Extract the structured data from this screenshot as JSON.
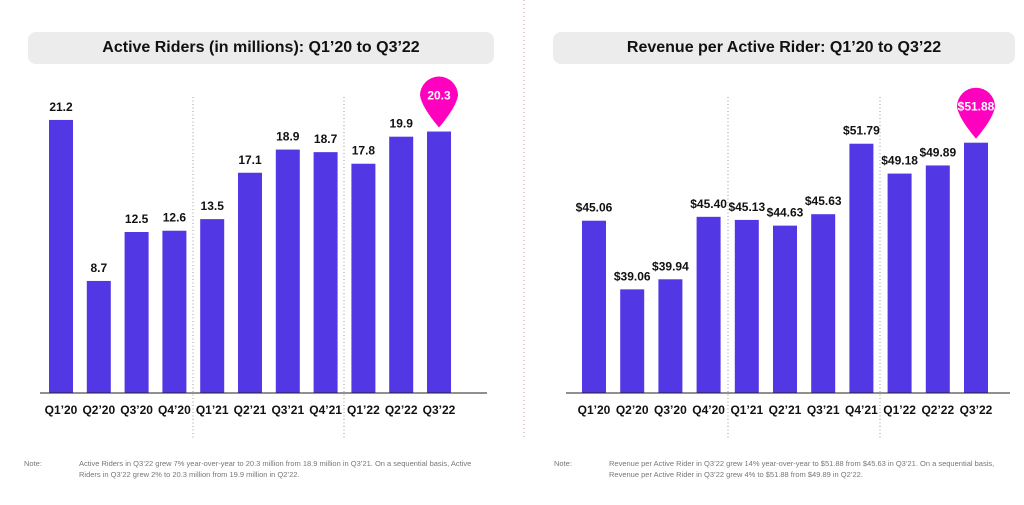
{
  "colors": {
    "bar": "#5237e5",
    "highlight": "#ff00bf",
    "divider": "#999999"
  },
  "chart_data": [
    {
      "type": "bar",
      "title": "Active Riders (in millions): Q1’20 to Q3’22",
      "categories": [
        "Q1’20",
        "Q2’20",
        "Q3’20",
        "Q4’20",
        "Q1’21",
        "Q2’21",
        "Q3’21",
        "Q4’21",
        "Q1’22",
        "Q2’22",
        "Q3’22"
      ],
      "values": [
        21.2,
        8.7,
        12.5,
        12.6,
        13.5,
        17.1,
        18.9,
        18.7,
        17.8,
        19.9,
        20.3
      ],
      "labels": [
        "21.2",
        "8.7",
        "12.5",
        "12.6",
        "13.5",
        "17.1",
        "18.9",
        "18.7",
        "17.8",
        "19.9",
        "20.3"
      ],
      "highlight_index": 10,
      "ylim": [
        0,
        23
      ],
      "grid": false
    },
    {
      "type": "bar",
      "title": "Revenue per Active Rider: Q1’20 to Q3’22",
      "categories": [
        "Q1’20",
        "Q2’20",
        "Q3’20",
        "Q4’20",
        "Q1’21",
        "Q2’21",
        "Q3’21",
        "Q4’21",
        "Q1’22",
        "Q2’22",
        "Q3’22"
      ],
      "values": [
        45.06,
        39.06,
        39.94,
        45.4,
        45.13,
        44.63,
        45.63,
        51.79,
        49.18,
        49.89,
        51.88
      ],
      "labels": [
        "$45.06",
        "$39.06",
        "$39.94",
        "$45.40",
        "$45.13",
        "$44.63",
        "$45.63",
        "$51.79",
        "$49.18",
        "$49.89",
        "$51.88"
      ],
      "highlight_index": 10,
      "ylim": [
        30,
        55
      ],
      "grid": false
    }
  ],
  "notes": [
    {
      "label": "Note:",
      "text": "Active Riders in Q3’22 grew 7% year-over-year to 20.3 million from 18.9 million in Q3’21. On a sequential basis, Active Riders in Q3’22 grew 2% to 20.3 million from 19.9 million in Q2’22."
    },
    {
      "label": "Note:",
      "text": "Revenue per Active Rider in Q3’22 grew 14% year-over-year to $51.88 from $45.63 in Q3’21. On a sequential basis, Revenue per Active Rider in Q3’22 grew 4% to $51.88 from $49.89 in Q2’22."
    }
  ]
}
